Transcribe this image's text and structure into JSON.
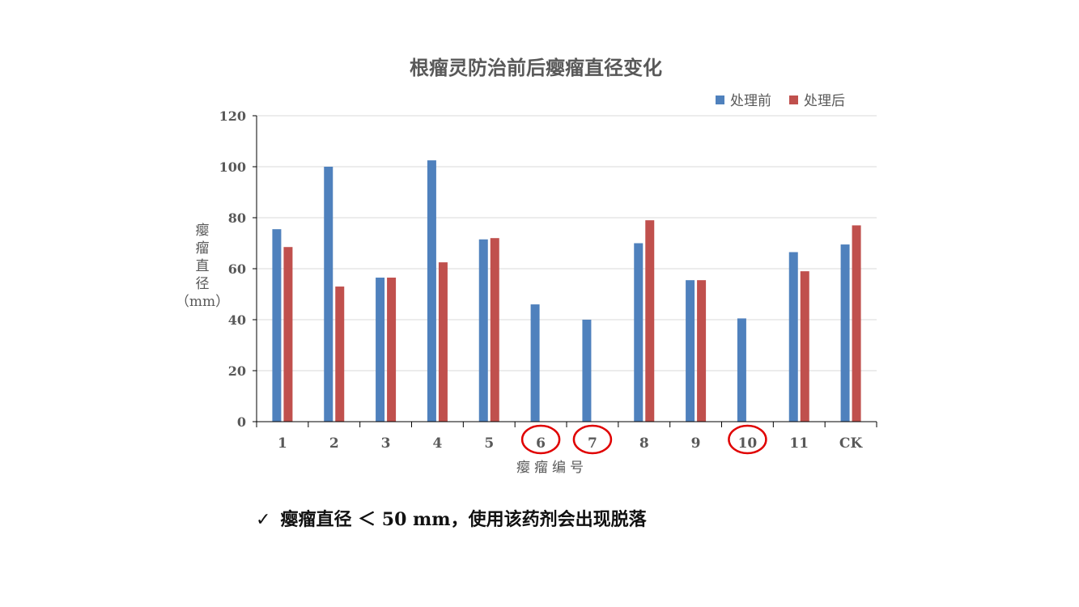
{
  "chart_data": {
    "type": "bar",
    "title": "根瘤灵防治前后瘿瘤直径变化",
    "xlabel": "瘿瘤编号",
    "ylabel_chars": [
      "瘿",
      "瘤",
      "直",
      "径",
      "（mm）"
    ],
    "categories": [
      "1",
      "2",
      "3",
      "4",
      "5",
      "6",
      "7",
      "8",
      "9",
      "10",
      "11",
      "CK"
    ],
    "series": [
      {
        "name": "处理前",
        "color": "#4F81BD",
        "values": [
          75.5,
          100,
          56.5,
          102.5,
          71.5,
          46,
          40,
          70,
          55.5,
          40.5,
          66.5,
          69.5
        ]
      },
      {
        "name": "处理后",
        "color": "#C0504D",
        "values": [
          68.5,
          53,
          56.5,
          62.5,
          72,
          0,
          0,
          79,
          55.5,
          0,
          59,
          77
        ]
      }
    ],
    "ylim": [
      0,
      120
    ],
    "yticks": [
      "0",
      "20",
      "40",
      "60",
      "80",
      "100",
      "120"
    ],
    "grid": true,
    "legend_position": "top-right",
    "highlighted_categories": [
      "6",
      "7",
      "10"
    ],
    "highlight_color": "#E00000"
  },
  "note": {
    "check": "✓",
    "text": "瘿瘤直径 ＜ 50 mm，使用该药剂会出现脱落"
  }
}
